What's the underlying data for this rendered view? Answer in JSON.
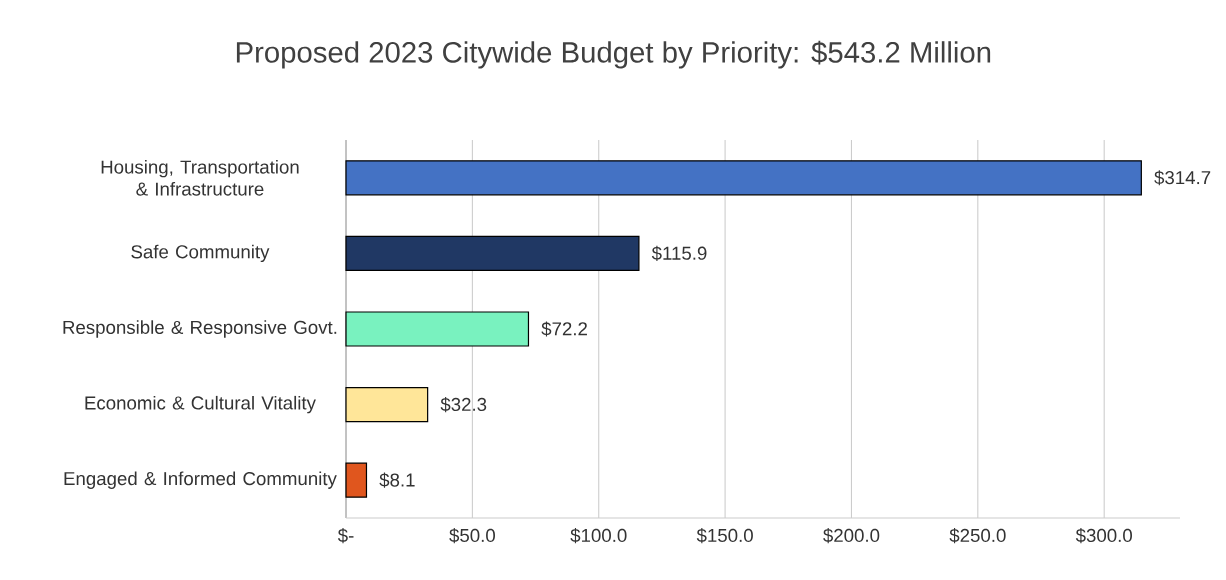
{
  "chart_data": {
    "type": "bar",
    "orientation": "horizontal",
    "title": "Proposed 2023 Citywide Budget by Priority:  $543.2 Million",
    "categories": [
      "Housing, Transportation & Infrastructure",
      "Safe Community",
      "Responsible & Responsive Govt.",
      "Economic & Cultural Vitality",
      "Engaged & Informed Community"
    ],
    "values": [
      314.7,
      115.9,
      72.2,
      32.3,
      8.1
    ],
    "colors": [
      "#4472c4",
      "#203864",
      "#79f2bf",
      "#ffe699",
      "#e0561e"
    ],
    "value_labels": [
      "$314.7",
      "$115.9",
      "$72.2",
      "$32.3",
      "$8.1"
    ],
    "xlim": [
      0,
      330
    ],
    "xticks": [
      {
        "value": 0,
        "label": "$-"
      },
      {
        "value": 50,
        "label": "$50.0"
      },
      {
        "value": 100,
        "label": "$100.0"
      },
      {
        "value": 150,
        "label": "$150.0"
      },
      {
        "value": 200,
        "label": "$200.0"
      },
      {
        "value": 250,
        "label": "$250.0"
      },
      {
        "value": 300,
        "label": "$300.0"
      }
    ],
    "grid": "x"
  }
}
